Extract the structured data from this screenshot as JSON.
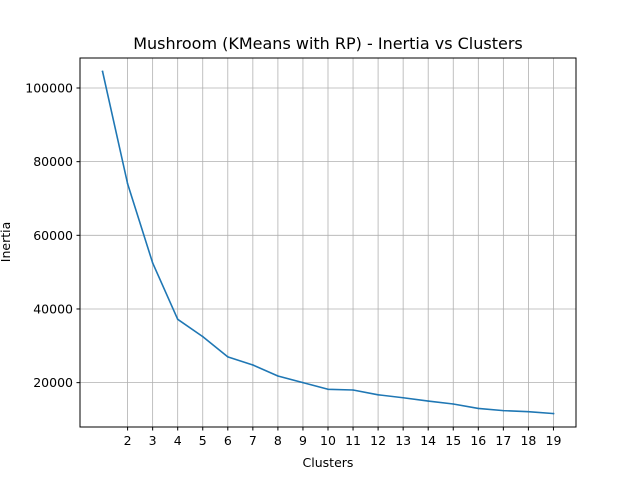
{
  "chart_data": {
    "type": "line",
    "title": "Mushroom (KMeans with RP) - Inertia vs Clusters",
    "xlabel": "Clusters",
    "ylabel": "Inertia",
    "x": [
      1,
      2,
      3,
      4,
      5,
      6,
      7,
      8,
      9,
      10,
      11,
      12,
      13,
      14,
      15,
      16,
      17,
      18,
      19
    ],
    "series": [
      {
        "values": [
          104500,
          74000,
          52500,
          37200,
          32500,
          27000,
          24800,
          21800,
          20000,
          18200,
          18000,
          16700,
          15900,
          15000,
          14200,
          13000,
          12400,
          12100,
          11600
        ],
        "color": "#1f77b4"
      }
    ],
    "xticks": [
      2,
      3,
      4,
      5,
      6,
      7,
      8,
      9,
      10,
      11,
      12,
      13,
      14,
      15,
      16,
      17,
      18,
      19
    ],
    "yticks": [
      20000,
      40000,
      60000,
      80000,
      100000
    ],
    "xlim": [
      0.1,
      19.9
    ],
    "ylim": [
      7955,
      108145
    ],
    "grid": true,
    "legend": "none"
  }
}
